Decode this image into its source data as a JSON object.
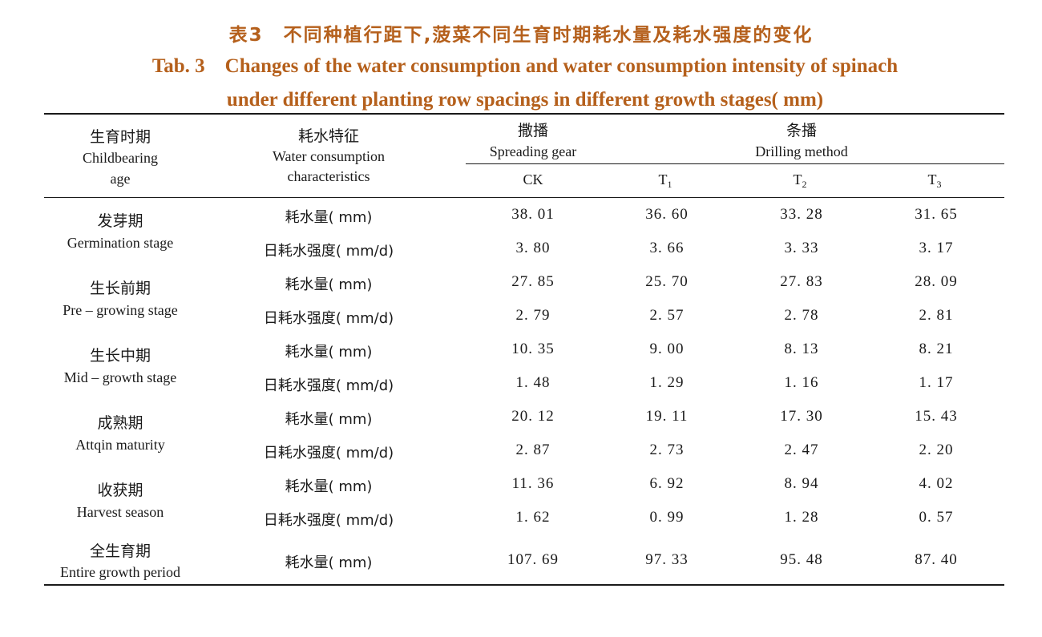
{
  "caption": {
    "cn": "表3　不同种植行距下,菠菜不同生育时期耗水量及耗水强度的变化",
    "en_line1": "Tab. 3　Changes of the water consumption and water consumption intensity of spinach",
    "en_line2": "under different planting row spacings in different growth stages( mm)"
  },
  "header": {
    "stage_cn": "生育时期",
    "stage_en_1": "Childbearing",
    "stage_en_2": "age",
    "feature_cn": "耗水特征",
    "feature_en_1": "Water consumption",
    "feature_en_2": "characteristics",
    "spread_cn": "撒播",
    "spread_en": "Spreading gear",
    "drill_cn": "条播",
    "drill_en": "Drilling method",
    "col_ck": "CK",
    "col_t1": "T",
    "col_t1_sub": "1",
    "col_t2": "T",
    "col_t2_sub": "2",
    "col_t3": "T",
    "col_t3_sub": "3"
  },
  "features": {
    "consumption": "耗水量( mm)",
    "consumption_b": "耗水量( mm)",
    "intensity": "日耗水强度( mm/d)"
  },
  "stages": [
    {
      "cn": "发芽期",
      "en": "Germination stage",
      "consumption": [
        "38. 01",
        "36. 60",
        "33. 28",
        "31. 65"
      ],
      "intensity": [
        "3. 80",
        "3. 66",
        "3. 33",
        "3. 17"
      ]
    },
    {
      "cn": "生长前期",
      "en": "Pre – growing stage",
      "consumption": [
        "27. 85",
        "25. 70",
        "27. 83",
        "28. 09"
      ],
      "intensity": [
        "2. 79",
        "2. 57",
        "2. 78",
        "2. 81"
      ]
    },
    {
      "cn": "生长中期",
      "en": "Mid – growth stage",
      "consumption": [
        "10. 35",
        "9. 00",
        "8. 13",
        "8. 21"
      ],
      "intensity": [
        "1. 48",
        "1. 29",
        "1. 16",
        "1. 17"
      ]
    },
    {
      "cn": "成熟期",
      "en": "Attqin maturity",
      "consumption": [
        "20. 12",
        "19. 11",
        "17. 30",
        "15. 43"
      ],
      "intensity": [
        "2. 87",
        "2. 73",
        "2. 47",
        "2. 20"
      ]
    },
    {
      "cn": "收获期",
      "en": "Harvest season",
      "consumption": [
        "11. 36",
        "6. 92",
        "8. 94",
        "4. 02"
      ],
      "intensity": [
        "1. 62",
        "0. 99",
        "1. 28",
        "0. 57"
      ]
    }
  ],
  "total": {
    "cn": "全生育期",
    "en": "Entire growth period",
    "consumption": [
      "107. 69",
      "97. 33",
      "95. 48",
      "87. 40"
    ]
  }
}
